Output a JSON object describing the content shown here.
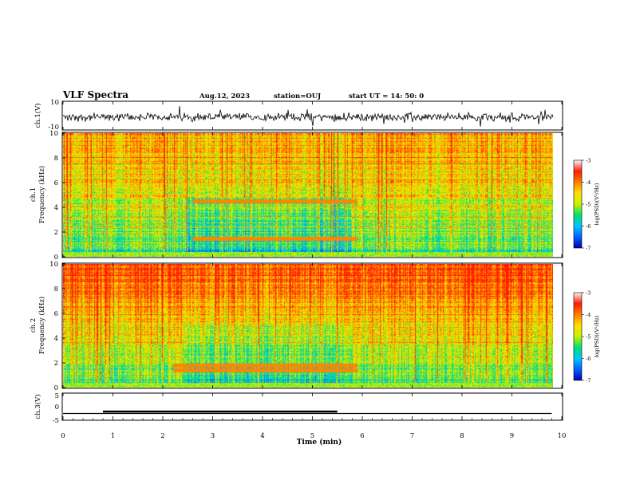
{
  "header": {
    "title": "VLF Spectra",
    "date": "Aug.12, 2023",
    "station": "station=OUJ",
    "start": "start  UT =   14: 50: 0"
  },
  "colors": {
    "spectrum_scale": [
      "#0000b0",
      "#0060ff",
      "#00c8ff",
      "#00e070",
      "#c8f000",
      "#ffe000",
      "#ff8000",
      "#ff1a00",
      "#f8f8f8"
    ],
    "trace": "#000000"
  },
  "chart_data": [
    {
      "type": "line",
      "ylabel": "ch.1(V)",
      "ylim": [
        -10,
        10
      ],
      "y_ticks": [
        "10",
        "-10"
      ],
      "xlim": [
        0,
        10
      ],
      "description_values": {
        "baseline_v": -1,
        "noise_amplitude_v": 2.5
      }
    },
    {
      "type": "heatmap",
      "ylabel": "ch.1\nFrequency (kHz)",
      "ylabel_lines": [
        "ch.1",
        "Frequency (kHz)"
      ],
      "xlim": [
        0,
        10
      ],
      "ylim": [
        0,
        10
      ],
      "y_ticks": [
        "0",
        "2",
        "4",
        "6",
        "8",
        "10"
      ],
      "colorbar": {
        "label": "log(PSD)(V²/Hz)",
        "ticks": [
          "-3",
          "-4",
          "-5",
          "-6",
          "-7"
        ],
        "range": [
          -7,
          -3
        ]
      },
      "features": {
        "tone_lines_khz": [
          4.5,
          1.5
        ],
        "tone_interval_min": [
          2.6,
          5.9
        ]
      }
    },
    {
      "type": "heatmap",
      "ylabel": "ch.2\nFrequency (kHz)",
      "ylabel_lines": [
        "ch.2",
        "Frequency (kHz)"
      ],
      "xlim": [
        0,
        10
      ],
      "ylim": [
        0,
        10
      ],
      "y_ticks": [
        "0",
        "2",
        "4",
        "6",
        "8",
        "10"
      ],
      "colorbar": {
        "label": "log(PSD)(V²/Hz)",
        "ticks": [
          "-3",
          "-4",
          "-5",
          "-6",
          "-7"
        ],
        "range": [
          -7,
          -3
        ]
      },
      "features": {
        "tone_lines_khz": [
          1.8,
          1.4
        ],
        "tone_interval_min": [
          2.2,
          5.9
        ]
      }
    },
    {
      "type": "line",
      "ylabel": "ch.3(V)",
      "ylim": [
        -5,
        5
      ],
      "y_ticks": [
        "5",
        "0",
        "-5"
      ],
      "xlim": [
        0,
        10
      ],
      "xlabel": "Time (min)",
      "x_ticks": [
        "0",
        "1",
        "2",
        "3",
        "4",
        "5",
        "6",
        "7",
        "8",
        "9",
        "10"
      ],
      "series": [
        {
          "x": [
            0,
            9.8
          ],
          "y": [
            -2.5,
            -2.5
          ]
        },
        {
          "x": [
            0.8,
            5.5
          ],
          "y": [
            -1.8,
            -1.8
          ]
        }
      ]
    }
  ]
}
